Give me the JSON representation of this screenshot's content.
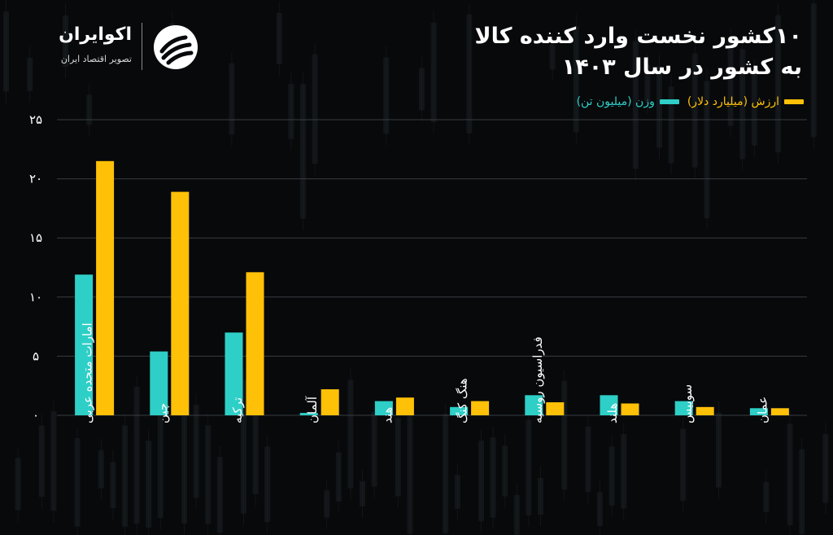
{
  "header": {
    "title_line1": "۱۰کشور نخست وارد کننده کالا",
    "title_line2": "به کشور در سال ۱۴۰۳"
  },
  "logo": {
    "name": "اکوایران",
    "tagline": "تصویر اقتصاد ایران"
  },
  "colors": {
    "background": "#07090b",
    "value_series": "#ffc107",
    "weight_series": "#2ecfc7",
    "grid": "#3a3d42"
  },
  "chart_data": {
    "type": "bar",
    "categories": [
      "امارات متحده عربی",
      "چین",
      "ترکیه",
      "آلمان",
      "هند",
      "هنگ کنگ",
      "فدراسیون روسیه",
      "هلند",
      "سوییس",
      "عمان"
    ],
    "series": [
      {
        "name": "وزن (میلیون تن)",
        "color": "#2ecfc7",
        "values": [
          11.9,
          5.4,
          7.0,
          0.2,
          1.2,
          0.7,
          1.7,
          1.7,
          1.2,
          0.6
        ]
      },
      {
        "name": "ارزش (میلیارد دلار)",
        "color": "#ffc107",
        "values": [
          21.5,
          18.9,
          12.1,
          2.2,
          1.5,
          1.2,
          1.1,
          1.0,
          0.7,
          0.6
        ]
      }
    ],
    "ylim": [
      0,
      25
    ],
    "yticks": [
      0,
      5,
      10,
      15,
      20,
      25
    ],
    "ytick_labels": [
      "۰",
      "۵",
      "۱۰",
      "۱۵",
      "۲۰",
      "۲۵"
    ],
    "grid": true,
    "legend_position": "top-right"
  }
}
